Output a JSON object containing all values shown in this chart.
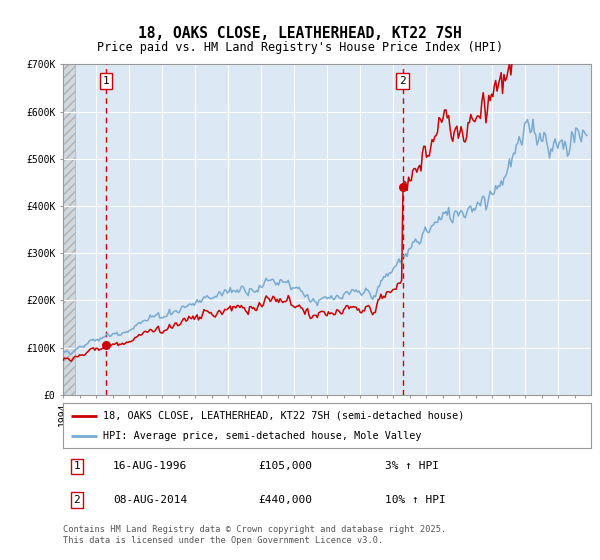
{
  "title": "18, OAKS CLOSE, LEATHERHEAD, KT22 7SH",
  "subtitle": "Price paid vs. HM Land Registry's House Price Index (HPI)",
  "legend_line1": "18, OAKS CLOSE, LEATHERHEAD, KT22 7SH (semi-detached house)",
  "legend_line2": "HPI: Average price, semi-detached house, Mole Valley",
  "annotation1_date": "16-AUG-1996",
  "annotation1_price": "£105,000",
  "annotation1_hpi": "3% ↑ HPI",
  "annotation2_date": "08-AUG-2014",
  "annotation2_price": "£440,000",
  "annotation2_hpi": "10% ↑ HPI",
  "footer": "Contains HM Land Registry data © Crown copyright and database right 2025.\nThis data is licensed under the Open Government Licence v3.0.",
  "sale1_year": 1996.62,
  "sale1_value": 105000,
  "sale2_year": 2014.58,
  "sale2_value": 440000,
  "xmin": 1994,
  "xmax": 2026,
  "ymin": 0,
  "ymax": 700000,
  "yticks": [
    0,
    100000,
    200000,
    300000,
    400000,
    500000,
    600000,
    700000
  ],
  "ytick_labels": [
    "£0",
    "£100K",
    "£200K",
    "£300K",
    "£400K",
    "£500K",
    "£600K",
    "£700K"
  ],
  "bg_color": "#dce9f5",
  "hatch_color": "#b0b0b0",
  "grid_color": "#ffffff",
  "red_line_color": "#cc0000",
  "blue_line_color": "#7aaad0",
  "dot_color": "#cc0000",
  "hatch_start": 1994.0,
  "hatch_end": 1994.75
}
